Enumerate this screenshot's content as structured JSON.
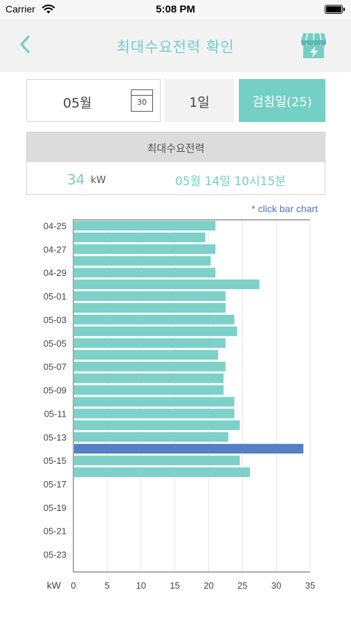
{
  "status_bar": {
    "carrier": "Carrier",
    "time": "5:08 PM"
  },
  "nav": {
    "title": "최대수요전력 확인",
    "back_icon": "chevron-left-icon",
    "store_icon": "store-lightning-icon"
  },
  "selector": {
    "month": "05월",
    "calendar_day": "30",
    "day": "1일",
    "meter_day": "검침일(25)"
  },
  "max_demand": {
    "header": "최대수요전력",
    "value": "34",
    "unit": "kW",
    "time": "05월 14일 10시15분"
  },
  "hint": "* click bar chart",
  "colors": {
    "accent": "#74cfc4",
    "highlight": "#567fc4",
    "bar": "#7dd1c8"
  },
  "chart_data": {
    "type": "bar",
    "orientation": "horizontal",
    "categories": [
      "04-25",
      "04-26",
      "04-27",
      "04-28",
      "04-29",
      "04-30",
      "05-01",
      "05-02",
      "05-03",
      "05-04",
      "05-05",
      "05-06",
      "05-07",
      "05-08",
      "05-09",
      "05-10",
      "05-11",
      "05-12",
      "05-13",
      "05-14",
      "05-15",
      "05-16",
      "05-17",
      "05-18",
      "05-19",
      "05-20",
      "05-21",
      "05-22",
      "05-23",
      "05-24"
    ],
    "tick_labels": [
      "04-25",
      "04-27",
      "04-29",
      "05-01",
      "05-03",
      "05-05",
      "05-07",
      "05-09",
      "05-11",
      "05-13",
      "05-15",
      "05-17",
      "05-19",
      "05-21",
      "05-23"
    ],
    "values": [
      21,
      19.5,
      21,
      20.3,
      21,
      27.5,
      22.5,
      22.5,
      23.8,
      24.2,
      22.5,
      21.4,
      22.5,
      22.2,
      22.2,
      23.8,
      23.8,
      24.6,
      22.9,
      34,
      24.6,
      26.1,
      null,
      null,
      null,
      null,
      null,
      null,
      null,
      null
    ],
    "highlighted_category": "05-14",
    "xlabel": "kW",
    "xlim": [
      0,
      35
    ],
    "xticks": [
      0,
      5,
      10,
      15,
      20,
      25,
      30,
      35
    ],
    "grid": "vertical"
  }
}
